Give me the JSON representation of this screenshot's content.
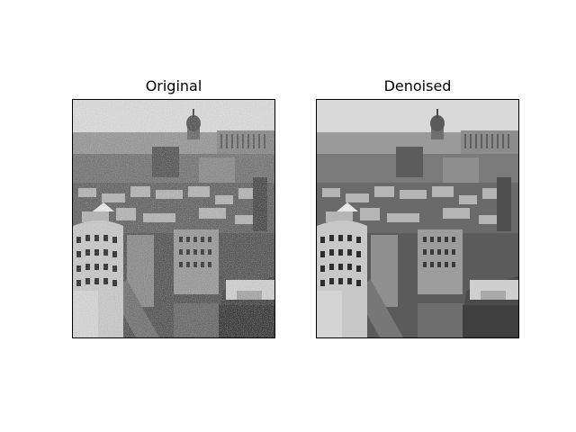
{
  "panels": [
    {
      "title": "Original",
      "image": "noisy grayscale aerial photo of a dense city with a domed cathedral on the skyline"
    },
    {
      "title": "Denoised",
      "image": "smoothed grayscale aerial photo of the same city view"
    }
  ],
  "colors": {
    "background": "#ffffff",
    "frame": "#000000",
    "text": "#000000"
  }
}
